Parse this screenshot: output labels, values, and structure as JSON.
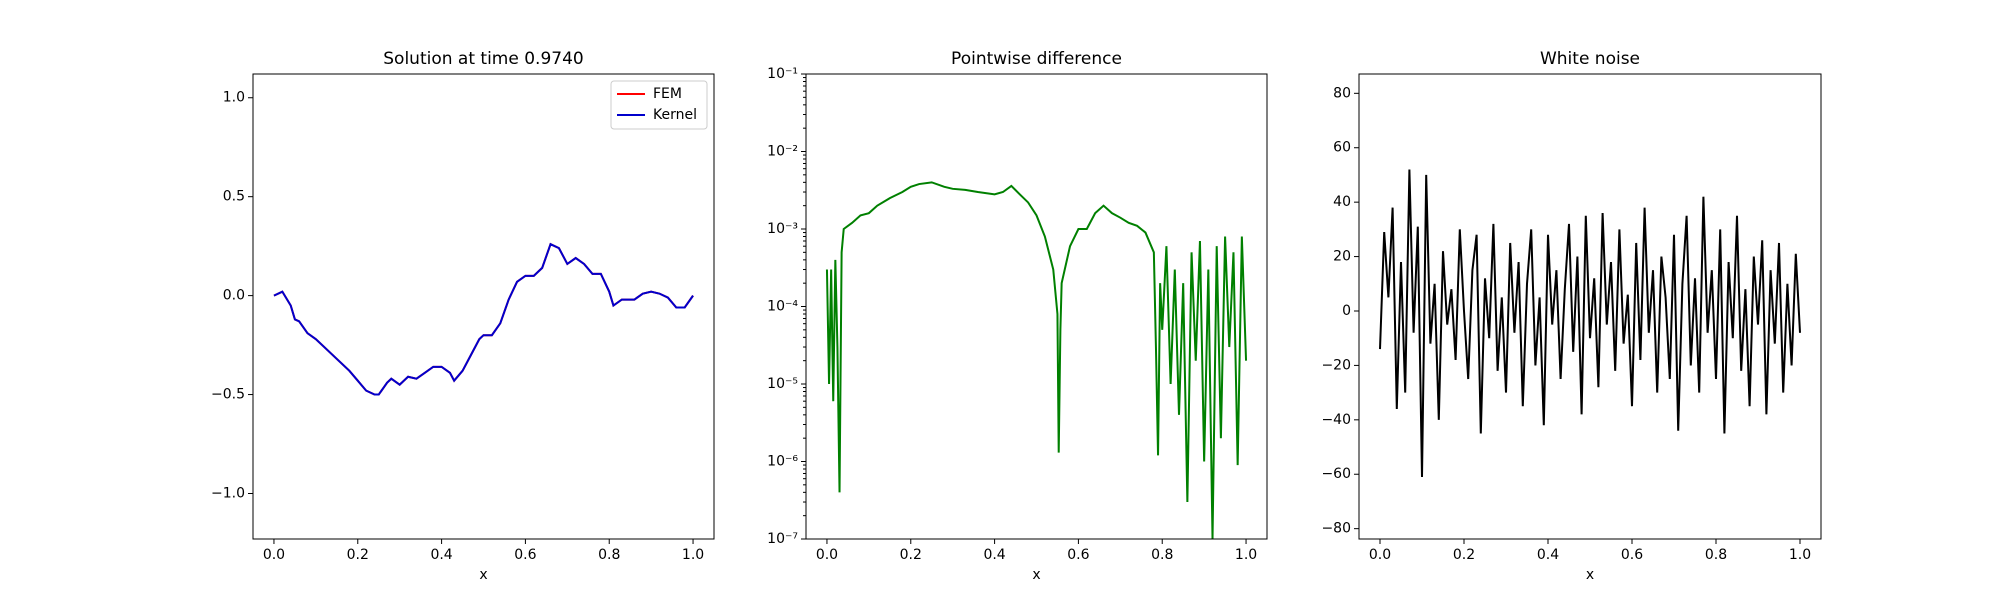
{
  "chart_data": [
    {
      "type": "line",
      "title": "Solution at time 0.9740",
      "x_label": "x",
      "legend": "upper right",
      "x": [
        0,
        0.02,
        0.04,
        0.05,
        0.06,
        0.08,
        0.1,
        0.12,
        0.15,
        0.18,
        0.2,
        0.22,
        0.24,
        0.25,
        0.27,
        0.28,
        0.3,
        0.32,
        0.34,
        0.36,
        0.38,
        0.4,
        0.42,
        0.43,
        0.45,
        0.47,
        0.49,
        0.5,
        0.52,
        0.54,
        0.56,
        0.58,
        0.6,
        0.62,
        0.64,
        0.66,
        0.68,
        0.7,
        0.72,
        0.74,
        0.76,
        0.78,
        0.8,
        0.81,
        0.83,
        0.86,
        0.88,
        0.9,
        0.92,
        0.94,
        0.96,
        0.98,
        1.0
      ],
      "series": [
        {
          "name": "FEM",
          "color": "#ff0000",
          "values": [
            0,
            0.02,
            -0.05,
            -0.12,
            -0.13,
            -0.19,
            -0.22,
            -0.26,
            -0.32,
            -0.38,
            -0.43,
            -0.48,
            -0.5,
            -0.5,
            -0.44,
            -0.42,
            -0.45,
            -0.41,
            -0.42,
            -0.39,
            -0.36,
            -0.36,
            -0.39,
            -0.43,
            -0.38,
            -0.3,
            -0.22,
            -0.2,
            -0.2,
            -0.14,
            -0.02,
            0.07,
            0.1,
            0.1,
            0.14,
            0.26,
            0.24,
            0.16,
            0.19,
            0.16,
            0.11,
            0.11,
            0.02,
            -0.05,
            -0.02,
            -0.02,
            0.01,
            0.02,
            0.01,
            -0.01,
            -0.06,
            -0.06,
            0
          ]
        },
        {
          "name": "Kernel",
          "color": "#0000cc",
          "values": [
            0,
            0.02,
            -0.05,
            -0.12,
            -0.13,
            -0.19,
            -0.22,
            -0.26,
            -0.32,
            -0.38,
            -0.43,
            -0.48,
            -0.5,
            -0.5,
            -0.44,
            -0.42,
            -0.45,
            -0.41,
            -0.42,
            -0.39,
            -0.36,
            -0.36,
            -0.39,
            -0.43,
            -0.38,
            -0.3,
            -0.22,
            -0.2,
            -0.2,
            -0.14,
            -0.02,
            0.07,
            0.1,
            0.1,
            0.14,
            0.26,
            0.24,
            0.16,
            0.19,
            0.16,
            0.11,
            0.11,
            0.02,
            -0.05,
            -0.02,
            -0.02,
            0.01,
            0.02,
            0.01,
            -0.01,
            -0.06,
            -0.06,
            0
          ]
        }
      ],
      "xlim": [
        -0.05,
        1.05
      ],
      "ylim": [
        -1.23,
        1.12
      ],
      "xticks": [
        {
          "value": 0,
          "label": "0.0"
        },
        {
          "value": 0.2,
          "label": "0.2"
        },
        {
          "value": 0.4,
          "label": "0.4"
        },
        {
          "value": 0.6,
          "label": "0.6"
        },
        {
          "value": 0.8,
          "label": "0.8"
        },
        {
          "value": 1,
          "label": "1.0"
        }
      ],
      "yticks": [
        {
          "value": -1,
          "label": "−1.0"
        },
        {
          "value": -0.5,
          "label": "−0.5"
        },
        {
          "value": 0,
          "label": "0.0"
        },
        {
          "value": 0.5,
          "label": "0.5"
        },
        {
          "value": 1,
          "label": "1.0"
        }
      ]
    },
    {
      "type": "line",
      "title": "Pointwise difference",
      "x_label": "x",
      "yscale": "log",
      "x": [
        0,
        0.005,
        0.01,
        0.015,
        0.02,
        0.025,
        0.03,
        0.035,
        0.04,
        0.06,
        0.08,
        0.1,
        0.12,
        0.15,
        0.18,
        0.2,
        0.22,
        0.25,
        0.28,
        0.3,
        0.33,
        0.36,
        0.4,
        0.42,
        0.44,
        0.46,
        0.48,
        0.5,
        0.52,
        0.54,
        0.55,
        0.553,
        0.557,
        0.56,
        0.58,
        0.6,
        0.62,
        0.64,
        0.66,
        0.68,
        0.7,
        0.72,
        0.74,
        0.76,
        0.78,
        0.785,
        0.79,
        0.795,
        0.8,
        0.81,
        0.82,
        0.83,
        0.84,
        0.85,
        0.86,
        0.87,
        0.88,
        0.89,
        0.9,
        0.91,
        0.92,
        0.93,
        0.94,
        0.95,
        0.96,
        0.97,
        0.98,
        0.99,
        1.0
      ],
      "series": [
        {
          "color": "#008000",
          "values": [
            0.0003,
            1e-05,
            0.0003,
            6e-06,
            0.0004,
            3e-05,
            4e-07,
            0.0005,
            0.001,
            0.0012,
            0.0015,
            0.0016,
            0.002,
            0.0025,
            0.003,
            0.0035,
            0.0038,
            0.004,
            0.0035,
            0.0033,
            0.0032,
            0.003,
            0.0028,
            0.003,
            0.0036,
            0.0028,
            0.0022,
            0.0015,
            0.0008,
            0.0003,
            8e-05,
            1.3e-06,
            5e-05,
            0.0002,
            0.0006,
            0.001,
            0.001,
            0.0016,
            0.002,
            0.0016,
            0.0014,
            0.0012,
            0.0011,
            0.0009,
            0.0005,
            3e-05,
            1.2e-06,
            0.0002,
            5e-05,
            0.0006,
            1e-05,
            0.0003,
            4e-06,
            0.0002,
            3e-07,
            0.0005,
            2e-05,
            0.0007,
            1e-06,
            0.0003,
            1e-07,
            0.0006,
            2e-06,
            0.0008,
            3e-05,
            0.0005,
            9e-07,
            0.0008,
            2e-05
          ]
        }
      ],
      "xlim": [
        -0.05,
        1.05
      ],
      "ylim": [
        1e-07,
        0.1
      ],
      "xticks": [
        {
          "value": 0,
          "label": "0.0"
        },
        {
          "value": 0.2,
          "label": "0.2"
        },
        {
          "value": 0.4,
          "label": "0.4"
        },
        {
          "value": 0.6,
          "label": "0.6"
        },
        {
          "value": 0.8,
          "label": "0.8"
        },
        {
          "value": 1,
          "label": "1.0"
        }
      ],
      "yticks": [
        {
          "value": 1e-07,
          "label": "10⁻⁷"
        },
        {
          "value": 1e-06,
          "label": "10⁻⁶"
        },
        {
          "value": 1e-05,
          "label": "10⁻⁵"
        },
        {
          "value": 0.0001,
          "label": "10⁻⁴"
        },
        {
          "value": 0.001,
          "label": "10⁻³"
        },
        {
          "value": 0.01,
          "label": "10⁻²"
        },
        {
          "value": 0.1,
          "label": "10⁻¹"
        }
      ]
    },
    {
      "type": "line",
      "title": "White noise",
      "x_label": "x",
      "x": [
        0,
        0.01,
        0.02,
        0.03,
        0.04,
        0.05,
        0.06,
        0.07,
        0.08,
        0.09,
        0.1,
        0.11,
        0.12,
        0.13,
        0.14,
        0.15,
        0.16,
        0.17,
        0.18,
        0.19,
        0.2,
        0.21,
        0.22,
        0.23,
        0.24,
        0.25,
        0.26,
        0.27,
        0.28,
        0.29,
        0.3,
        0.31,
        0.32,
        0.33,
        0.34,
        0.35,
        0.36,
        0.37,
        0.38,
        0.39,
        0.4,
        0.41,
        0.42,
        0.43,
        0.44,
        0.45,
        0.46,
        0.47,
        0.48,
        0.49,
        0.5,
        0.51,
        0.52,
        0.53,
        0.54,
        0.55,
        0.56,
        0.57,
        0.58,
        0.59,
        0.6,
        0.61,
        0.62,
        0.63,
        0.64,
        0.65,
        0.66,
        0.67,
        0.68,
        0.69,
        0.7,
        0.71,
        0.72,
        0.73,
        0.74,
        0.75,
        0.76,
        0.77,
        0.78,
        0.79,
        0.8,
        0.81,
        0.82,
        0.83,
        0.84,
        0.85,
        0.86,
        0.87,
        0.88,
        0.89,
        0.9,
        0.91,
        0.92,
        0.93,
        0.94,
        0.95,
        0.96,
        0.97,
        0.98,
        0.99,
        1.0
      ],
      "series": [
        {
          "color": "#000000",
          "values": [
            -14,
            29,
            5,
            38,
            -36,
            18,
            -30,
            52,
            -8,
            31,
            -61,
            50,
            -12,
            10,
            -40,
            22,
            -5,
            8,
            -18,
            30,
            0,
            -25,
            15,
            28,
            -45,
            12,
            -10,
            32,
            -22,
            5,
            -30,
            25,
            -8,
            18,
            -35,
            10,
            30,
            -20,
            5,
            -42,
            28,
            -5,
            15,
            -25,
            8,
            32,
            -15,
            20,
            -38,
            35,
            -10,
            12,
            -28,
            36,
            -5,
            18,
            -22,
            30,
            -12,
            6,
            -35,
            25,
            -18,
            38,
            -8,
            15,
            -30,
            20,
            5,
            -25,
            28,
            -44,
            10,
            35,
            -20,
            12,
            -30,
            42,
            -8,
            15,
            -25,
            30,
            -45,
            18,
            -10,
            35,
            -22,
            8,
            -35,
            20,
            -5,
            26,
            -38,
            15,
            -12,
            25,
            -30,
            10,
            -20,
            21,
            -8
          ]
        }
      ],
      "xlim": [
        -0.05,
        1.05
      ],
      "ylim": [
        -83.8,
        87.1
      ],
      "xticks": [
        {
          "value": 0,
          "label": "0.0"
        },
        {
          "value": 0.2,
          "label": "0.2"
        },
        {
          "value": 0.4,
          "label": "0.4"
        },
        {
          "value": 0.6,
          "label": "0.6"
        },
        {
          "value": 0.8,
          "label": "0.8"
        },
        {
          "value": 1,
          "label": "1.0"
        }
      ],
      "yticks": [
        {
          "value": -80,
          "label": "−80"
        },
        {
          "value": -60,
          "label": "−60"
        },
        {
          "value": -40,
          "label": "−40"
        },
        {
          "value": -20,
          "label": "−20"
        },
        0,
        20,
        40,
        60,
        80
      ]
    }
  ]
}
